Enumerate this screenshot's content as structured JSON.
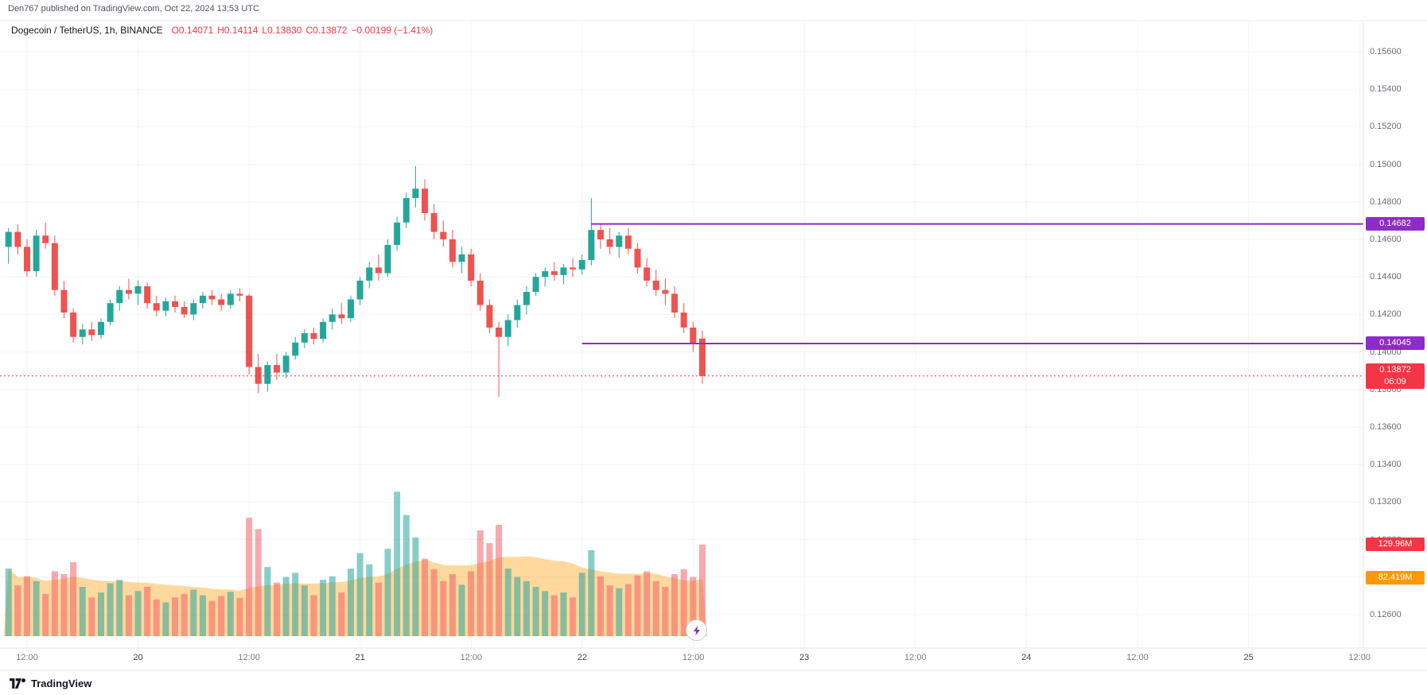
{
  "attribution": "Den767 published on TradingView.com, Oct 22, 2024 13:53 UTC",
  "header": {
    "symbol": "Dogecoin / TetherUS, 1h, BINANCE",
    "open": "O0.14071",
    "high": "H0.14114",
    "low": "L0.13830",
    "close": "C0.13872",
    "change": "−0.00199 (−1.41%)"
  },
  "footer": {
    "logo_text": "TradingView"
  },
  "axis": {
    "price_min": 0.126,
    "price_max": 0.156,
    "price_step": 0.002,
    "time_ticks": [
      {
        "text": "12:00",
        "major": false
      },
      {
        "text": "20",
        "major": true
      },
      {
        "text": "12:00",
        "major": false
      },
      {
        "text": "21",
        "major": true
      },
      {
        "text": "12:00",
        "major": false
      },
      {
        "text": "22",
        "major": true
      },
      {
        "text": "12:00",
        "major": false
      },
      {
        "text": "23",
        "major": true
      },
      {
        "text": "12:00",
        "major": false
      },
      {
        "text": "24",
        "major": true
      },
      {
        "text": "12:00",
        "major": false
      },
      {
        "text": "25",
        "major": true
      },
      {
        "text": "12:00",
        "major": false
      }
    ]
  },
  "levels": [
    {
      "label": "0.14682",
      "price": 0.14682,
      "start_candle": 63
    },
    {
      "label": "0.14045",
      "price": 0.14045,
      "start_candle": 62
    }
  ],
  "last_price": {
    "label": "0.13872",
    "price": 0.13872,
    "countdown": "06:09"
  },
  "volume_axis": {
    "current": {
      "label": "129.96M",
      "value": 129.96
    },
    "ma": {
      "label": "82.419M",
      "value": 82.419
    }
  },
  "colors": {
    "up": "#26a69a",
    "down": "#ef5350",
    "vol_up": "rgba(38,166,154,0.55)",
    "vol_down": "rgba(242,84,91,0.5)",
    "vol_ma_fill": "rgba(255,152,0,0.38)",
    "level": "#8e2cc7",
    "last": "#f23645",
    "grid": "#f2f3f6",
    "axis_sep": "#e0e3eb"
  },
  "chart_data": {
    "type": "candlestick",
    "title": "Dogecoin / TetherUS, 1h, BINANCE",
    "symbol": "DOGEUSDT",
    "exchange": "BINANCE",
    "interval": "1h",
    "start": "Oct 19 10:00 UTC",
    "ylim": [
      0.126,
      0.156
    ],
    "xlabels": [
      "12:00",
      "20",
      "12:00",
      "21",
      "12:00",
      "22",
      "12:00",
      "23",
      "12:00",
      "24",
      "12:00",
      "25",
      "12:00"
    ],
    "drawn_levels": [
      0.14682,
      0.14045
    ],
    "last_close": {
      "o": 0.14071,
      "h": 0.14114,
      "l": 0.1383,
      "c": 0.13872,
      "change": -0.00199,
      "change_pct": -1.41
    },
    "volume_unit": "millions",
    "volume_current": 129.96,
    "volume_ma": 82.419,
    "candles": [
      [
        0.1456,
        0.1466,
        0.1447,
        0.1464,
        96
      ],
      [
        0.1464,
        0.1468,
        0.1452,
        0.1456,
        72
      ],
      [
        0.1456,
        0.146,
        0.144,
        0.1443,
        85
      ],
      [
        0.1443,
        0.1465,
        0.144,
        0.1462,
        78
      ],
      [
        0.1462,
        0.1469,
        0.1455,
        0.1458,
        60
      ],
      [
        0.1458,
        0.1462,
        0.143,
        0.1433,
        92
      ],
      [
        0.1433,
        0.1438,
        0.1418,
        0.1421,
        88
      ],
      [
        0.1421,
        0.1423,
        0.1405,
        0.1408,
        105
      ],
      [
        0.1408,
        0.1415,
        0.1404,
        0.1412,
        70
      ],
      [
        0.1412,
        0.1416,
        0.1406,
        0.1409,
        55
      ],
      [
        0.1409,
        0.1418,
        0.1407,
        0.1416,
        62
      ],
      [
        0.1416,
        0.1428,
        0.1414,
        0.1426,
        75
      ],
      [
        0.1426,
        0.1435,
        0.1422,
        0.1433,
        80
      ],
      [
        0.1433,
        0.1439,
        0.1428,
        0.1431,
        58
      ],
      [
        0.1431,
        0.1438,
        0.1425,
        0.1435,
        64
      ],
      [
        0.1435,
        0.1437,
        0.1423,
        0.1426,
        70
      ],
      [
        0.1426,
        0.143,
        0.1419,
        0.1422,
        52
      ],
      [
        0.1422,
        0.1429,
        0.1419,
        0.1427,
        48
      ],
      [
        0.1427,
        0.143,
        0.1421,
        0.1424,
        55
      ],
      [
        0.1424,
        0.1427,
        0.1418,
        0.142,
        60
      ],
      [
        0.142,
        0.1428,
        0.1417,
        0.1426,
        66
      ],
      [
        0.1426,
        0.1432,
        0.1423,
        0.143,
        58
      ],
      [
        0.143,
        0.1433,
        0.1425,
        0.1428,
        50
      ],
      [
        0.1428,
        0.1431,
        0.1422,
        0.1425,
        57
      ],
      [
        0.1425,
        0.1433,
        0.1423,
        0.1431,
        63
      ],
      [
        0.1431,
        0.1434,
        0.1427,
        0.143,
        54
      ],
      [
        0.143,
        0.1431,
        0.1388,
        0.1392,
        168
      ],
      [
        0.1392,
        0.1399,
        0.1378,
        0.1383,
        152
      ],
      [
        0.1383,
        0.1395,
        0.1379,
        0.1393,
        98
      ],
      [
        0.1393,
        0.1399,
        0.1385,
        0.1389,
        76
      ],
      [
        0.1389,
        0.14,
        0.1386,
        0.1398,
        84
      ],
      [
        0.1398,
        0.1408,
        0.1396,
        0.1405,
        90
      ],
      [
        0.1405,
        0.1412,
        0.1402,
        0.141,
        72
      ],
      [
        0.141,
        0.1413,
        0.1404,
        0.1407,
        58
      ],
      [
        0.1407,
        0.1418,
        0.1405,
        0.1416,
        80
      ],
      [
        0.1416,
        0.1423,
        0.1412,
        0.142,
        85
      ],
      [
        0.142,
        0.1426,
        0.1415,
        0.1418,
        62
      ],
      [
        0.1418,
        0.143,
        0.1416,
        0.1428,
        96
      ],
      [
        0.1428,
        0.144,
        0.1425,
        0.1438,
        118
      ],
      [
        0.1438,
        0.1448,
        0.1434,
        0.1445,
        102
      ],
      [
        0.1445,
        0.1452,
        0.1438,
        0.1442,
        76
      ],
      [
        0.1442,
        0.146,
        0.144,
        0.1457,
        124
      ],
      [
        0.1457,
        0.1472,
        0.1454,
        0.1469,
        205
      ],
      [
        0.1469,
        0.1485,
        0.1466,
        0.1482,
        172
      ],
      [
        0.1482,
        0.1499,
        0.1477,
        0.1487,
        140
      ],
      [
        0.1487,
        0.1492,
        0.147,
        0.1474,
        110
      ],
      [
        0.1474,
        0.1479,
        0.146,
        0.1464,
        95
      ],
      [
        0.1464,
        0.147,
        0.1456,
        0.146,
        78
      ],
      [
        0.146,
        0.1465,
        0.1445,
        0.1448,
        88
      ],
      [
        0.1448,
        0.1456,
        0.1442,
        0.1452,
        73
      ],
      [
        0.1452,
        0.1455,
        0.1435,
        0.1438,
        92
      ],
      [
        0.1438,
        0.1442,
        0.1422,
        0.1425,
        150
      ],
      [
        0.1425,
        0.1428,
        0.141,
        0.1413,
        132
      ],
      [
        0.1413,
        0.1416,
        0.1376,
        0.1408,
        158
      ],
      [
        0.1408,
        0.142,
        0.1403,
        0.1417,
        96
      ],
      [
        0.1417,
        0.1428,
        0.1413,
        0.1425,
        84
      ],
      [
        0.1425,
        0.1435,
        0.142,
        0.1432,
        78
      ],
      [
        0.1432,
        0.1442,
        0.143,
        0.144,
        70
      ],
      [
        0.144,
        0.1445,
        0.1435,
        0.1443,
        64
      ],
      [
        0.1443,
        0.1448,
        0.1438,
        0.1441,
        58
      ],
      [
        0.1441,
        0.1447,
        0.1436,
        0.1445,
        62
      ],
      [
        0.1445,
        0.145,
        0.144,
        0.1444,
        55
      ],
      [
        0.1444,
        0.1452,
        0.1441,
        0.1449,
        90
      ],
      [
        0.1449,
        0.1482,
        0.1446,
        0.1465,
        122
      ],
      [
        0.1465,
        0.1468,
        0.1455,
        0.146,
        85
      ],
      [
        0.146,
        0.1466,
        0.1452,
        0.1456,
        72
      ],
      [
        0.1456,
        0.1464,
        0.145,
        0.1462,
        68
      ],
      [
        0.1462,
        0.1466,
        0.1452,
        0.1455,
        74
      ],
      [
        0.1455,
        0.1458,
        0.1442,
        0.1445,
        86
      ],
      [
        0.1445,
        0.145,
        0.1435,
        0.1438,
        92
      ],
      [
        0.1438,
        0.1444,
        0.143,
        0.1433,
        78
      ],
      [
        0.1433,
        0.1439,
        0.1425,
        0.1431,
        70
      ],
      [
        0.1431,
        0.1435,
        0.1418,
        0.1421,
        88
      ],
      [
        0.1421,
        0.1426,
        0.141,
        0.1413,
        95
      ],
      [
        0.1413,
        0.1416,
        0.14,
        0.14045,
        84
      ],
      [
        0.14071,
        0.14114,
        0.1383,
        0.13872,
        129.96
      ]
    ]
  }
}
